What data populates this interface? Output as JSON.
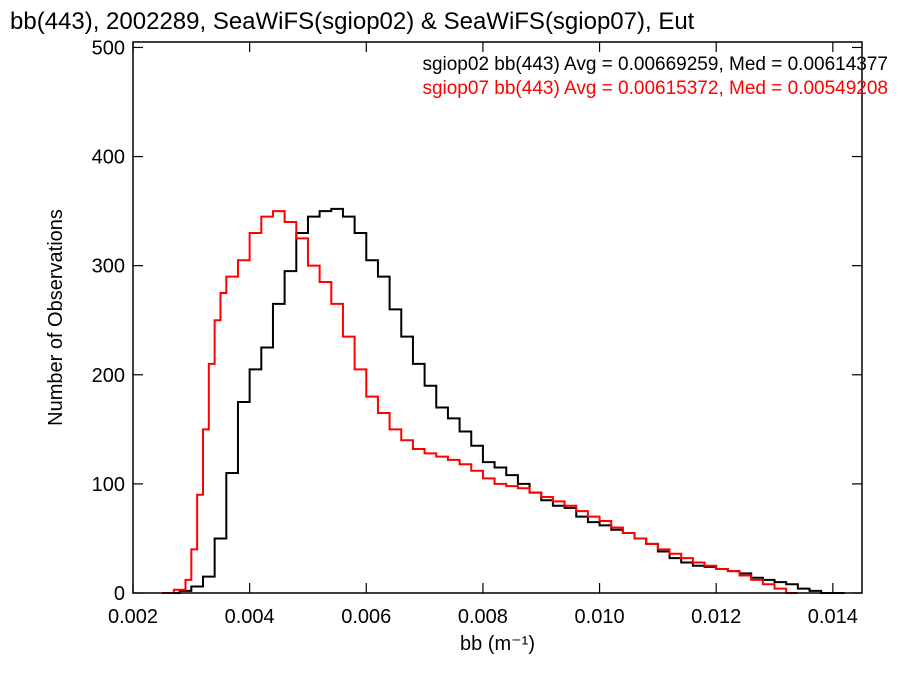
{
  "chart_data": {
    "type": "histogram",
    "title": "bb(443), 2002289, SeaWiFS(sgiop02) & SeaWiFS(sgiop07), Eut",
    "xlabel": "bb (m⁻¹)",
    "ylabel": "Number of Observations",
    "xlim": [
      0.002,
      0.0145
    ],
    "ylim": [
      0,
      505
    ],
    "xticks": [
      0.002,
      0.004,
      0.006,
      0.008,
      0.01,
      0.012,
      0.014
    ],
    "xtick_labels": [
      "0.002",
      "0.004",
      "0.006",
      "0.008",
      "0.010",
      "0.012",
      "0.014"
    ],
    "yticks": [
      0,
      100,
      200,
      300,
      400,
      500
    ],
    "ytick_labels": [
      "0",
      "100",
      "200",
      "300",
      "400",
      "500"
    ],
    "grid": false,
    "legend_position": "top-right",
    "series": [
      {
        "name": "sgiop02",
        "color": "#000000",
        "legend_text": "sgiop02 bb(443) Avg = 0.00669259, Med = 0.00614377",
        "x": [
          0.0025,
          0.0028,
          0.003,
          0.0032,
          0.0034,
          0.0036,
          0.0038,
          0.004,
          0.0042,
          0.0044,
          0.0046,
          0.0048,
          0.005,
          0.0052,
          0.0054,
          0.0056,
          0.0058,
          0.006,
          0.0062,
          0.0064,
          0.0066,
          0.0068,
          0.007,
          0.0072,
          0.0074,
          0.0076,
          0.0078,
          0.008,
          0.0082,
          0.0084,
          0.0086,
          0.0088,
          0.009,
          0.0092,
          0.0094,
          0.0096,
          0.0098,
          0.01,
          0.0102,
          0.0104,
          0.0106,
          0.0108,
          0.011,
          0.0112,
          0.0114,
          0.0116,
          0.0118,
          0.012,
          0.0122,
          0.0124,
          0.0126,
          0.0128,
          0.013,
          0.0132,
          0.0134,
          0.0136,
          0.0138,
          0.014
        ],
        "values": [
          0,
          2,
          6,
          15,
          50,
          110,
          175,
          205,
          225,
          265,
          295,
          330,
          345,
          350,
          352,
          345,
          330,
          305,
          290,
          260,
          235,
          210,
          190,
          170,
          160,
          148,
          135,
          120,
          115,
          108,
          100,
          92,
          85,
          80,
          78,
          70,
          65,
          62,
          58,
          55,
          50,
          45,
          38,
          32,
          28,
          25,
          24,
          22,
          20,
          18,
          14,
          12,
          10,
          8,
          4,
          2,
          0,
          0
        ]
      },
      {
        "name": "sgiop07",
        "color": "#ff0000",
        "legend_text": "sgiop07 bb(443) Avg = 0.00615372, Med = 0.00549208",
        "x": [
          0.0025,
          0.0027,
          0.0029,
          0.003,
          0.0031,
          0.0032,
          0.0033,
          0.0034,
          0.0035,
          0.0036,
          0.0038,
          0.004,
          0.0042,
          0.0044,
          0.0046,
          0.0048,
          0.005,
          0.0052,
          0.0054,
          0.0056,
          0.0058,
          0.006,
          0.0062,
          0.0064,
          0.0066,
          0.0068,
          0.007,
          0.0072,
          0.0074,
          0.0076,
          0.0078,
          0.008,
          0.0082,
          0.0084,
          0.0086,
          0.0088,
          0.009,
          0.0092,
          0.0094,
          0.0096,
          0.0098,
          0.01,
          0.0102,
          0.0104,
          0.0106,
          0.0108,
          0.011,
          0.0112,
          0.0114,
          0.0116,
          0.0118,
          0.012,
          0.0122,
          0.0124,
          0.0126,
          0.0128,
          0.013,
          0.0132
        ],
        "values": [
          0,
          3,
          12,
          40,
          90,
          150,
          210,
          250,
          275,
          290,
          305,
          330,
          345,
          350,
          340,
          325,
          300,
          285,
          265,
          235,
          205,
          180,
          165,
          150,
          140,
          132,
          128,
          125,
          122,
          118,
          112,
          105,
          100,
          98,
          96,
          92,
          88,
          84,
          80,
          75,
          70,
          66,
          60,
          55,
          50,
          45,
          40,
          36,
          32,
          28,
          25,
          22,
          20,
          16,
          12,
          8,
          4,
          0
        ]
      }
    ]
  }
}
